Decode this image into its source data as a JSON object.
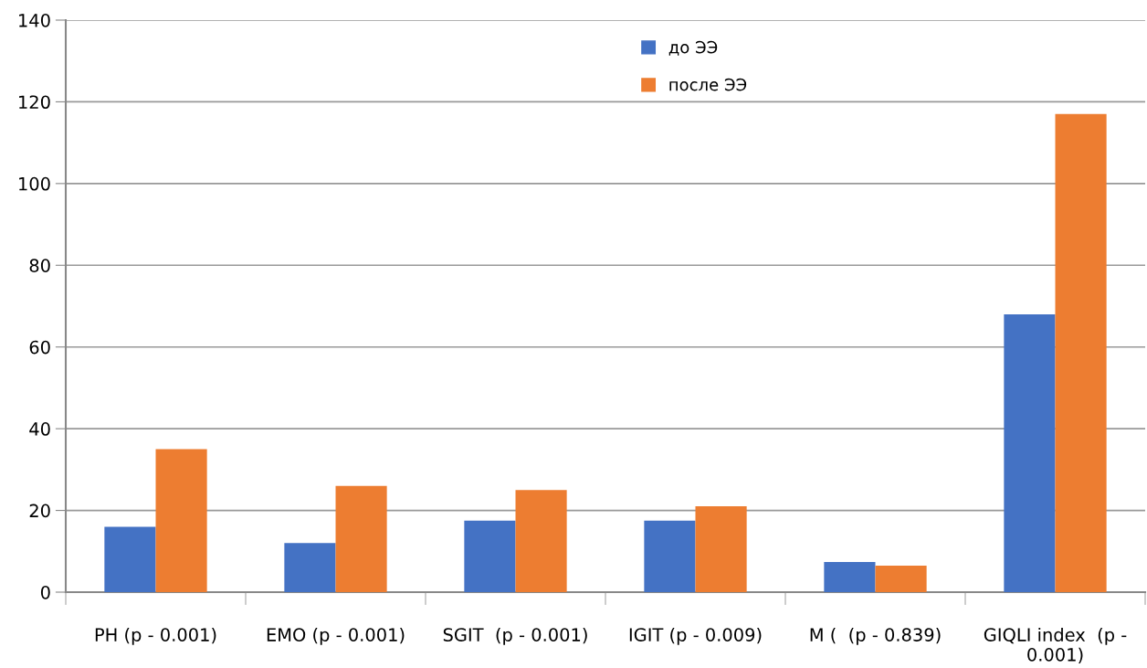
{
  "chart_data": {
    "type": "bar",
    "categories": [
      "PH (p - 0.001)",
      "EMO (p - 0.001)",
      "SGIT  (p - 0.001)",
      "IGIT (p - 0.009)",
      "M (  (p - 0.839)",
      "GIQLI index  (p -\n0.001)"
    ],
    "series": [
      {
        "name": "до ЭЭ",
        "color": "#4472c4",
        "values": [
          16,
          12,
          17.5,
          17.5,
          7.4,
          68
        ]
      },
      {
        "name": "после ЭЭ",
        "color": "#ed7d31",
        "values": [
          35,
          26,
          25,
          21,
          6.5,
          117
        ]
      }
    ],
    "ylim": [
      0,
      140
    ],
    "yticks": [
      0,
      20,
      40,
      60,
      80,
      100,
      120,
      140
    ],
    "grid": "y",
    "legend": "top"
  }
}
